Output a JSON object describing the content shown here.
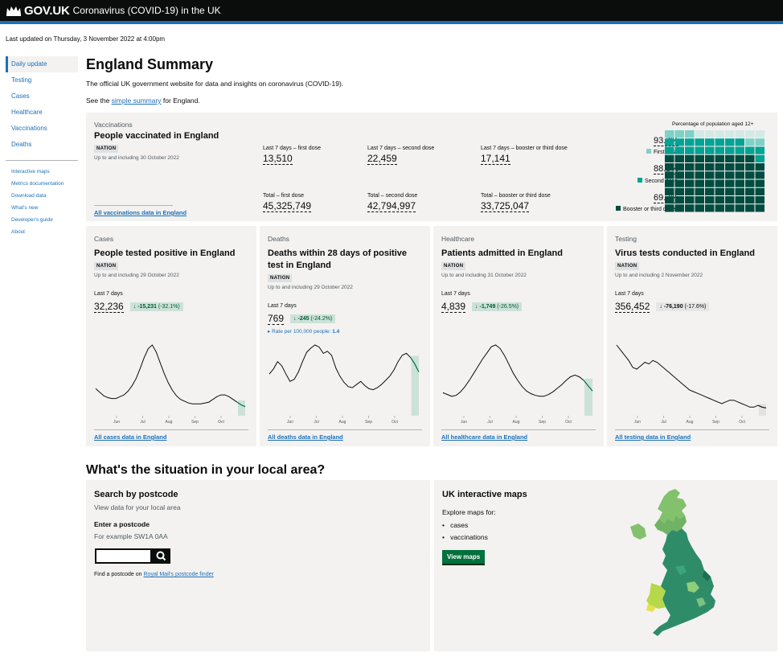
{
  "header": {
    "logo": "GOV.UK",
    "service": "Coronavirus (COVID-19) in the UK"
  },
  "last_updated": "Last updated on Thursday, 3 November 2022 at 4:00pm",
  "nav": {
    "items": [
      "Daily update",
      "Testing",
      "Cases",
      "Healthcare",
      "Vaccinations",
      "Deaths"
    ],
    "sub_items": [
      "Interactive maps",
      "Metrics documentation",
      "Download data",
      "What's new",
      "Developer's guide",
      "About"
    ]
  },
  "page": {
    "title": "England Summary",
    "intro": "The official UK government website for data and insights on coronavirus (COVID-19).",
    "see_prefix": "See the ",
    "see_link": "simple summary",
    "see_suffix": " for England."
  },
  "vaccinations": {
    "caption": "Vaccinations",
    "title": "People vaccinated in England",
    "tag": "NATION",
    "date": "Up to and including 30 October 2022",
    "stats": [
      {
        "label": "Last 7 days – first dose",
        "value": "13,510"
      },
      {
        "label": "Last 7 days – second dose",
        "value": "22,459"
      },
      {
        "label": "Last 7 days – booster or third dose",
        "value": "17,141"
      },
      {
        "label": "Total – first dose",
        "value": "45,325,749"
      },
      {
        "label": "Total – second dose",
        "value": "42,794,997"
      },
      {
        "label": "Total – booster or third dose",
        "value": "33,725,047"
      }
    ],
    "link": "All vaccinations data in England",
    "waffle": {
      "caption": "Percentage of population aged 12+",
      "first_pct": "93.7%",
      "first_label": "First dose",
      "first_value": 93.7,
      "second_pct": "88.5%",
      "second_label": "Second dose",
      "second_value": 88.5,
      "booster_pct": "69.7%",
      "booster_label": "Booster or third dose",
      "booster_value": 69.7,
      "colors": {
        "first": "#7fd1c6",
        "second": "#00a394",
        "booster": "#004c40",
        "none": "#d4e9e6"
      }
    }
  },
  "cards": [
    {
      "caption": "Cases",
      "title": "People tested positive in England",
      "tag": "NATION",
      "date": "Up to and including 29 October 2022",
      "label": "Last 7 days",
      "value": "32,236",
      "change": "-15,231",
      "change_pct": "(-32.1%)",
      "style": "g",
      "rate": "",
      "link": "All cases data in England"
    },
    {
      "caption": "Deaths",
      "title": "Deaths within 28 days of positive test in England",
      "tag": "NATION",
      "date": "Up to and including 29 October 2022",
      "label": "Last 7 days",
      "value": "769",
      "change": "-245",
      "change_pct": "(-24.2%)",
      "style": "g",
      "rate": "Rate per 100,000 people: ",
      "rate_val": "1.4",
      "link": "All deaths data in England"
    },
    {
      "caption": "Healthcare",
      "title": "Patients admitted in England",
      "tag": "NATION",
      "date": "Up to and including 31 October 2022",
      "label": "Last 7 days",
      "value": "4,839",
      "change": "-1,749",
      "change_pct": "(-26.5%)",
      "style": "g",
      "rate": "",
      "link": "All healthcare data in England"
    },
    {
      "caption": "Testing",
      "title": "Virus tests conducted in England",
      "tag": "NATION",
      "date": "Up to and including 2 November 2022",
      "label": "Last 7 days",
      "value": "356,452",
      "change": "-76,190",
      "change_pct": "(-17.6%)",
      "style": "gr",
      "rate": "",
      "link": "All testing data in England"
    }
  ],
  "chart_data": [
    {
      "type": "line",
      "name": "cases",
      "x_ticks": [
        "Jun",
        "Jul",
        "Aug",
        "Sep",
        "Oct"
      ],
      "values": [
        30,
        26,
        22,
        20,
        19,
        19,
        21,
        23,
        27,
        33,
        41,
        52,
        64,
        74,
        78,
        70,
        58,
        46,
        36,
        28,
        22,
        18,
        16,
        14,
        13,
        13,
        13,
        14,
        15,
        18,
        21,
        23,
        23,
        21,
        18,
        15,
        12,
        10
      ]
    },
    {
      "type": "line",
      "name": "deaths",
      "x_ticks": [
        "Jun",
        "Jul",
        "Aug",
        "Sep",
        "Oct"
      ],
      "values": [
        40,
        45,
        52,
        48,
        40,
        33,
        35,
        42,
        52,
        61,
        65,
        68,
        66,
        60,
        62,
        58,
        46,
        38,
        32,
        28,
        27,
        30,
        33,
        29,
        26,
        25,
        27,
        30,
        34,
        38,
        44,
        52,
        58,
        60,
        56,
        50,
        42
      ]
    },
    {
      "type": "line",
      "name": "healthcare",
      "x_ticks": [
        "Jun",
        "Jul",
        "Aug",
        "Sep",
        "Oct"
      ],
      "values": [
        26,
        24,
        22,
        23,
        27,
        33,
        40,
        48,
        56,
        64,
        71,
        78,
        80,
        76,
        68,
        58,
        48,
        40,
        33,
        28,
        25,
        23,
        22,
        22,
        24,
        27,
        31,
        35,
        40,
        44,
        46,
        44,
        40,
        34,
        28
      ]
    },
    {
      "type": "line",
      "name": "testing",
      "x_ticks": [
        "Jun",
        "Jul",
        "Aug",
        "Sep",
        "Oct"
      ],
      "values": [
        82,
        76,
        70,
        64,
        56,
        54,
        58,
        62,
        60,
        64,
        62,
        58,
        54,
        50,
        46,
        42,
        38,
        34,
        30,
        28,
        26,
        24,
        22,
        20,
        18,
        16,
        14,
        16,
        18,
        18,
        16,
        14,
        12,
        10,
        10,
        12,
        10,
        9
      ]
    }
  ],
  "local": {
    "heading": "What's the situation in your local area?",
    "postcode": {
      "title": "Search by postcode",
      "subtitle": "View data for your local area",
      "label": "Enter a postcode",
      "hint": "For example SW1A 0AA",
      "find_prefix": "Find a postcode on ",
      "find_link": "Royal Mail's postcode finder"
    },
    "maps": {
      "title": "UK interactive maps",
      "explore": "Explore maps for:",
      "items": [
        "cases",
        "vaccinations"
      ],
      "button": "View maps"
    }
  }
}
